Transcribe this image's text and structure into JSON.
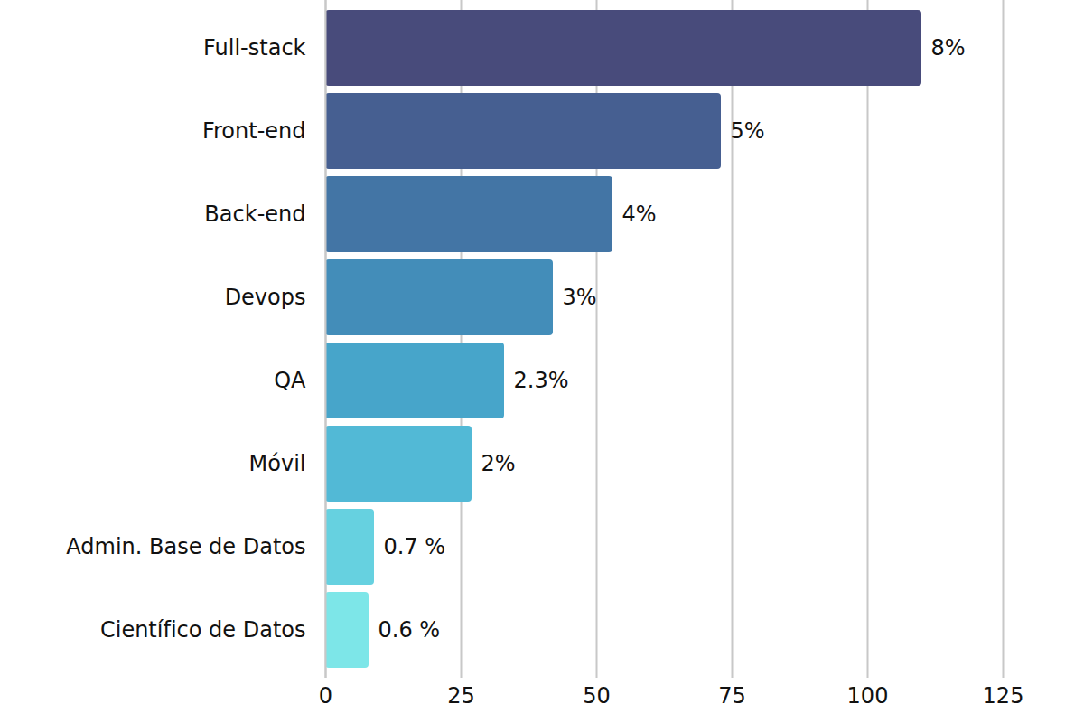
{
  "chart_data": {
    "type": "bar",
    "orientation": "horizontal",
    "categories": [
      "Full-stack",
      "Front-end",
      "Back-end",
      "Devops",
      "QA",
      "Móvil",
      "Admin. Base de Datos",
      "Científico de Datos"
    ],
    "values": [
      110,
      73,
      53,
      42,
      33,
      27,
      9,
      8
    ],
    "annotations": [
      "8%",
      "5%",
      "4%",
      "3%",
      "2.3%",
      "2%",
      "0.7 %",
      "0.6 %"
    ],
    "colors": [
      "#484b7b",
      "#465f91",
      "#4375a5",
      "#438db9",
      "#47a5ca",
      "#52b9d6",
      "#66d1e0",
      "#7de6e8"
    ],
    "xlim": [
      0,
      125
    ],
    "xticks": [
      0,
      25,
      50,
      75,
      100,
      125
    ],
    "grid": true,
    "data_labels": false
  }
}
